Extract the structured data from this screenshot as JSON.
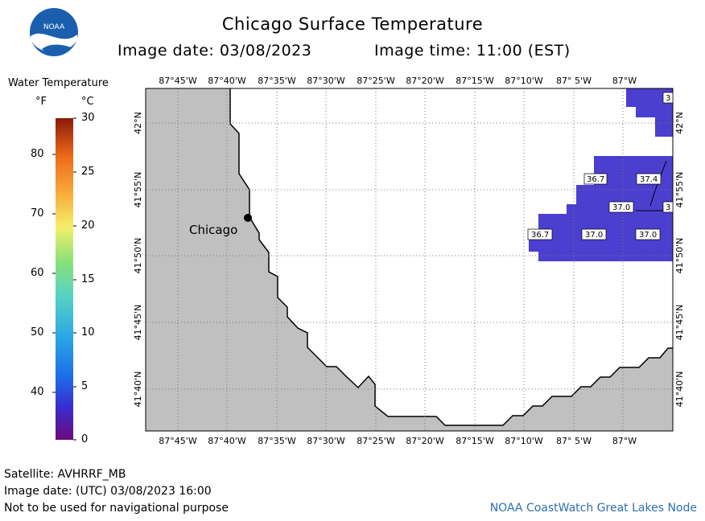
{
  "header": {
    "title": "Chicago Surface Temperature",
    "image_date": "Image date: 03/08/2023",
    "image_time": "Image time: 11:00 (EST)",
    "logo_text": "NOAA"
  },
  "legend": {
    "title": "Water Temperature",
    "unit_f": "°F",
    "unit_c": "°C",
    "f_ticks": [
      "80",
      "70",
      "60",
      "50",
      "40"
    ],
    "c_ticks": [
      "30",
      "25",
      "20",
      "15",
      "10",
      "5",
      "0"
    ]
  },
  "map": {
    "top_lon_labels": [
      "87°45'W",
      "87°40'W",
      "87°35'W",
      "87°30'W",
      "87°25'W",
      "87°20'W",
      "87°15'W",
      "87°10'W",
      "87° 5'W",
      "87°W"
    ],
    "bottom_lon_labels": [
      "87°45'W",
      "87°40'W",
      "87°35'W",
      "87°30'W",
      "87°25'W",
      "87°20'W",
      "87°15'W",
      "87°10'W",
      "87° 5'W",
      "87°W"
    ],
    "lat_labels": [
      "42°N",
      "41°55'N",
      "41°50'N",
      "41°45'N",
      "41°40'N"
    ],
    "city_label": "Chicago",
    "temperature_labels": [
      "3",
      "36.7",
      "37.4",
      "37.0",
      "3",
      "36.7",
      "37.0",
      "37.0"
    ],
    "colors": {
      "land": "#c0c0c0",
      "water_cold": "#4b3fcf",
      "grid": "#999999"
    }
  },
  "footer": {
    "satellite": "Satellite: AVHRRF_MB",
    "utc_date": "Image date: (UTC) 03/08/2023  16:00",
    "disclaimer": "Not to be used for navigational purpose",
    "credit": "NOAA CoastWatch Great Lakes Node"
  }
}
